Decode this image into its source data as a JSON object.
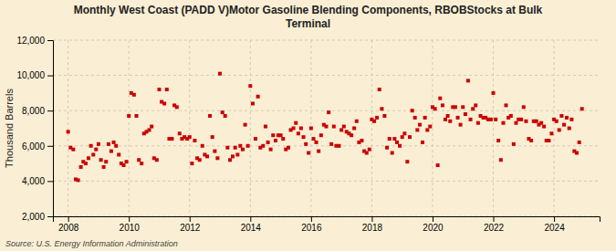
{
  "chart_data": {
    "type": "scatter",
    "title": "Monthly West Coast (PADD V)Motor Gasoline Blending Components, RBOBStocks at Bulk\nTerminal",
    "ylabel": "Thousand Barrels",
    "annotations": [
      "Source: U.S. Energy Information Administration"
    ],
    "color": "#cc0000",
    "marker": "square",
    "grid": true,
    "xlim": [
      2007.5,
      2025.5
    ],
    "xticks": [
      2008,
      2010,
      2012,
      2014,
      2016,
      2018,
      2020,
      2022,
      2024
    ],
    "ylim": [
      2000,
      12000
    ],
    "yticks": [
      {
        "value": 2000,
        "label": "2,000"
      },
      {
        "value": 4000,
        "label": "4,000"
      },
      {
        "value": 6000,
        "label": "6,000"
      },
      {
        "value": 8000,
        "label": "8,000"
      },
      {
        "value": 10000,
        "label": "10,000"
      },
      {
        "value": 12000,
        "label": "12,000"
      }
    ],
    "x": [
      2008.0,
      2008.08,
      2008.17,
      2008.25,
      2008.33,
      2008.42,
      2008.5,
      2008.58,
      2008.67,
      2008.75,
      2008.83,
      2008.92,
      2009.0,
      2009.08,
      2009.17,
      2009.25,
      2009.33,
      2009.42,
      2009.5,
      2009.58,
      2009.67,
      2009.75,
      2009.83,
      2009.92,
      2010.0,
      2010.08,
      2010.17,
      2010.25,
      2010.33,
      2010.42,
      2010.5,
      2010.58,
      2010.67,
      2010.75,
      2010.83,
      2010.92,
      2011.0,
      2011.08,
      2011.17,
      2011.25,
      2011.33,
      2011.42,
      2011.5,
      2011.58,
      2011.67,
      2011.75,
      2011.83,
      2011.92,
      2012.0,
      2012.08,
      2012.17,
      2012.25,
      2012.33,
      2012.42,
      2012.5,
      2012.58,
      2012.67,
      2012.75,
      2012.83,
      2012.92,
      2013.0,
      2013.08,
      2013.17,
      2013.25,
      2013.33,
      2013.42,
      2013.5,
      2013.58,
      2013.67,
      2013.75,
      2013.83,
      2013.92,
      2014.0,
      2014.08,
      2014.17,
      2014.25,
      2014.33,
      2014.42,
      2014.5,
      2014.58,
      2014.67,
      2014.75,
      2014.83,
      2014.92,
      2015.0,
      2015.08,
      2015.17,
      2015.25,
      2015.33,
      2015.42,
      2015.5,
      2015.58,
      2015.67,
      2015.75,
      2015.83,
      2015.92,
      2016.0,
      2016.08,
      2016.17,
      2016.25,
      2016.33,
      2016.42,
      2016.5,
      2016.58,
      2016.67,
      2016.75,
      2016.83,
      2016.92,
      2017.0,
      2017.08,
      2017.17,
      2017.25,
      2017.33,
      2017.42,
      2017.5,
      2017.58,
      2017.67,
      2017.75,
      2017.83,
      2017.92,
      2018.0,
      2018.08,
      2018.17,
      2018.25,
      2018.33,
      2018.42,
      2018.5,
      2018.58,
      2018.67,
      2018.75,
      2018.83,
      2018.92,
      2019.0,
      2019.08,
      2019.17,
      2019.25,
      2019.33,
      2019.42,
      2019.5,
      2019.58,
      2019.67,
      2019.75,
      2019.83,
      2019.92,
      2020.0,
      2020.08,
      2020.17,
      2020.25,
      2020.33,
      2020.42,
      2020.5,
      2020.58,
      2020.67,
      2020.75,
      2020.83,
      2020.92,
      2021.0,
      2021.08,
      2021.17,
      2021.25,
      2021.33,
      2021.42,
      2021.5,
      2021.58,
      2021.67,
      2021.75,
      2021.83,
      2021.92,
      2022.0,
      2022.08,
      2022.17,
      2022.25,
      2022.33,
      2022.42,
      2022.5,
      2022.58,
      2022.67,
      2022.75,
      2022.83,
      2022.92,
      2023.0,
      2023.08,
      2023.17,
      2023.25,
      2023.33,
      2023.42,
      2023.5,
      2023.58,
      2023.67,
      2023.75,
      2023.83,
      2023.92,
      2024.0,
      2024.08,
      2024.17,
      2024.25,
      2024.33,
      2024.42,
      2024.5,
      2024.58,
      2024.67,
      2024.75,
      2024.83,
      2024.92
    ],
    "values": [
      6800,
      5900,
      5800,
      4100,
      4050,
      4800,
      5100,
      5000,
      5300,
      6000,
      5500,
      5800,
      6100,
      5200,
      4800,
      5100,
      6100,
      5700,
      6200,
      6000,
      5500,
      5000,
      4900,
      5100,
      7700,
      9000,
      8900,
      7700,
      5200,
      5000,
      6700,
      6800,
      6900,
      7100,
      5300,
      5200,
      9200,
      8500,
      8400,
      9200,
      6400,
      6400,
      8300,
      8200,
      6700,
      6400,
      6500,
      6400,
      6500,
      5000,
      6300,
      5300,
      5200,
      6000,
      5500,
      5400,
      7700,
      6500,
      5700,
      5300,
      10100,
      7900,
      7700,
      5900,
      5200,
      5400,
      5900,
      5500,
      6000,
      5800,
      7200,
      6000,
      9400,
      8400,
      6400,
      8800,
      5900,
      6000,
      7100,
      6200,
      5800,
      6600,
      6300,
      6600,
      6600,
      6400,
      5800,
      5900,
      6900,
      7000,
      7300,
      6700,
      7000,
      6500,
      6100,
      5600,
      7000,
      6400,
      6200,
      5700,
      6600,
      7200,
      7100,
      7900,
      6100,
      7100,
      6000,
      6000,
      6900,
      7100,
      6800,
      6700,
      6600,
      7000,
      7400,
      6200,
      6300,
      5700,
      5600,
      5800,
      7500,
      7400,
      7600,
      9200,
      8100,
      7700,
      5900,
      6400,
      5600,
      6400,
      6200,
      6000,
      6500,
      6700,
      5100,
      6500,
      8000,
      7600,
      6900,
      7200,
      6200,
      7600,
      6900,
      7100,
      8200,
      8100,
      4900,
      8700,
      8300,
      7500,
      7700,
      7400,
      8200,
      8200,
      7600,
      7200,
      8200,
      7800,
      9700,
      7500,
      8100,
      8300,
      7300,
      7700,
      7600,
      7600,
      7500,
      7500,
      9000,
      7500,
      6300,
      5200,
      7300,
      8300,
      7600,
      7700,
      6100,
      7300,
      7500,
      7500,
      8200,
      7400,
      6400,
      6300,
      7400,
      7400,
      7200,
      7300,
      7100,
      6300,
      6300,
      6700,
      7500,
      7400,
      6900,
      7700,
      7200,
      7600,
      7000,
      7500,
      5700,
      5600,
      6200,
      8100
    ]
  }
}
